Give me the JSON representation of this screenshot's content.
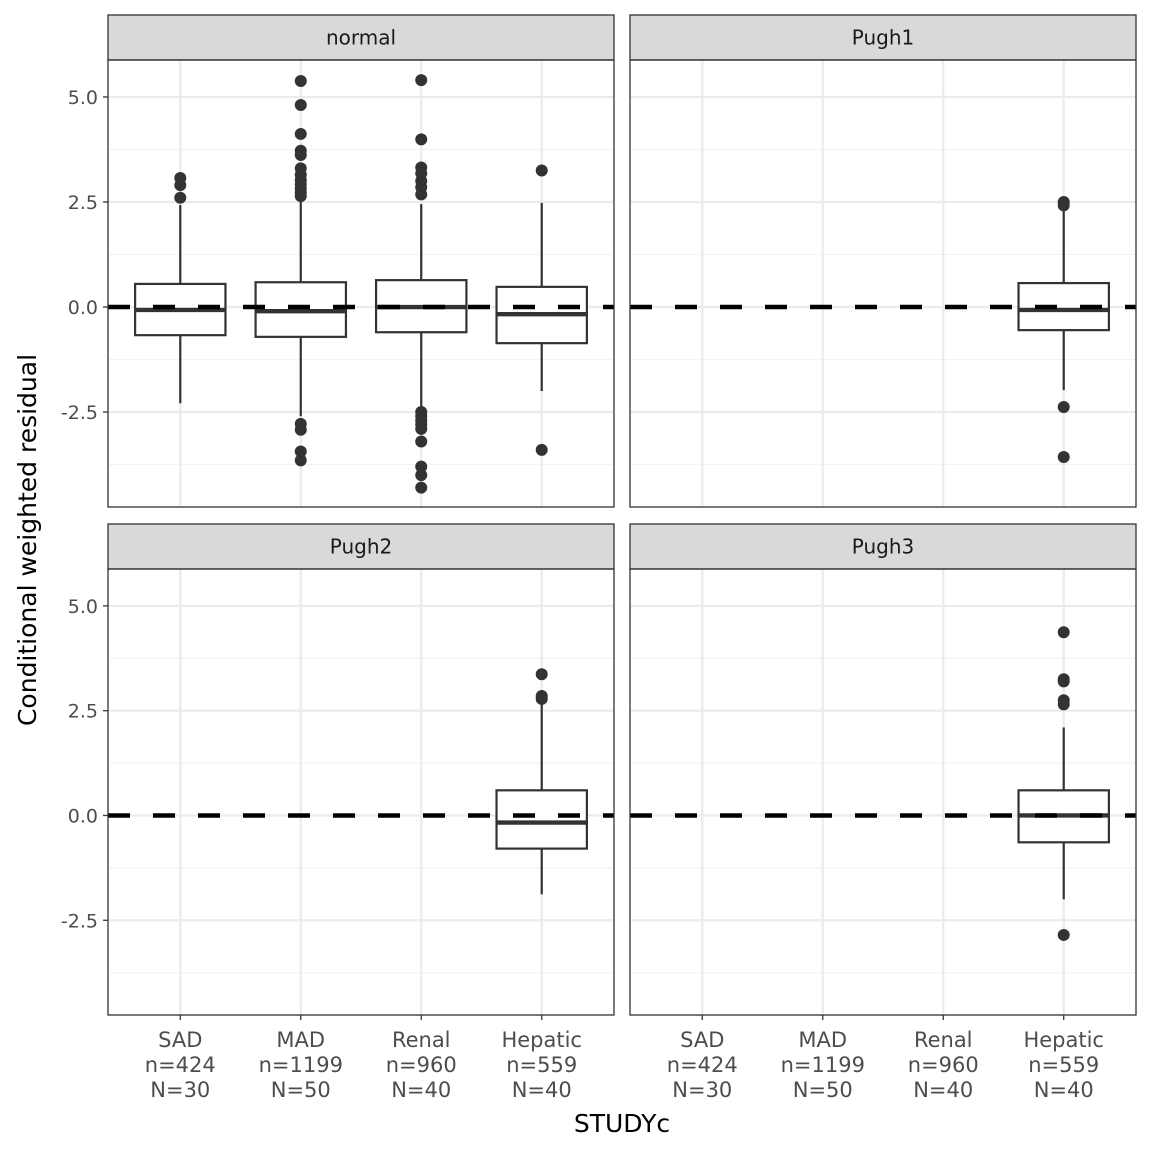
{
  "chart_data": {
    "type": "boxplot",
    "title": "",
    "xlabel": "STUDYc",
    "ylabel": "Conditional weighted residual",
    "ylim": [
      -4.76,
      5.88
    ],
    "yticks": [
      -2.5,
      0.0,
      2.5,
      5.0
    ],
    "ytick_labels": [
      "-2.5",
      "0.0",
      "2.5",
      "5.0"
    ],
    "reference_line": {
      "y": 0,
      "style": "dashed",
      "color": "#000000"
    },
    "categories": [
      "SAD",
      "MAD",
      "Renal",
      "Hepatic"
    ],
    "category_labels": [
      [
        "SAD",
        "n=424",
        "N=30"
      ],
      [
        "MAD",
        "n=1199",
        "N=50"
      ],
      [
        "Renal",
        "n=960",
        "N=40"
      ],
      [
        "Hepatic",
        "n=559",
        "N=40"
      ]
    ],
    "grid": true,
    "box_color": "#333333",
    "strip_color": "#d9d9d9",
    "panels": [
      {
        "label": "normal",
        "boxes": [
          {
            "category": "SAD",
            "q1": -0.67,
            "median": -0.07,
            "q3": 0.55,
            "whisker_low": -2.29,
            "whisker_high": 2.43,
            "outliers": [
              3.07,
              2.9,
              2.6
            ]
          },
          {
            "category": "MAD",
            "q1": -0.71,
            "median": -0.1,
            "q3": 0.59,
            "whisker_low": -2.6,
            "whisker_high": 2.55,
            "outliers": [
              5.38,
              4.81,
              4.12,
              3.72,
              3.62,
              3.3,
              3.15,
              3.02,
              2.92,
              2.82,
              2.72,
              2.64,
              -2.78,
              -2.92,
              -3.44,
              -3.65
            ]
          },
          {
            "category": "Renal",
            "q1": -0.6,
            "median": 0.0,
            "q3": 0.64,
            "whisker_low": -2.4,
            "whisker_high": 2.45,
            "outliers": [
              5.4,
              3.99,
              3.32,
              3.18,
              3.0,
              2.85,
              2.68,
              -2.5,
              -2.6,
              -2.7,
              -2.8,
              -2.9,
              -3.2,
              -3.8,
              -4.0,
              -4.3
            ]
          },
          {
            "category": "Hepatic",
            "q1": -0.86,
            "median": -0.17,
            "q3": 0.48,
            "whisker_low": -2.0,
            "whisker_high": 2.48,
            "outliers": [
              3.25,
              -3.4
            ]
          }
        ]
      },
      {
        "label": "Pugh1",
        "boxes": [
          {
            "category": "Hepatic",
            "q1": -0.55,
            "median": -0.07,
            "q3": 0.57,
            "whisker_low": -1.98,
            "whisker_high": 2.35,
            "outliers": [
              2.5,
              2.42,
              -2.38,
              -3.57
            ]
          }
        ]
      },
      {
        "label": "Pugh2",
        "boxes": [
          {
            "category": "Hepatic",
            "q1": -0.79,
            "median": -0.17,
            "q3": 0.6,
            "whisker_low": -1.88,
            "whisker_high": 2.65,
            "outliers": [
              3.37,
              2.85,
              2.78
            ]
          }
        ]
      },
      {
        "label": "Pugh3",
        "boxes": [
          {
            "category": "Hepatic",
            "q1": -0.64,
            "median": 0.0,
            "q3": 0.6,
            "whisker_low": -2.0,
            "whisker_high": 2.1,
            "outliers": [
              4.37,
              3.25,
              3.2,
              2.75,
              2.65,
              -2.85
            ]
          }
        ]
      }
    ]
  }
}
